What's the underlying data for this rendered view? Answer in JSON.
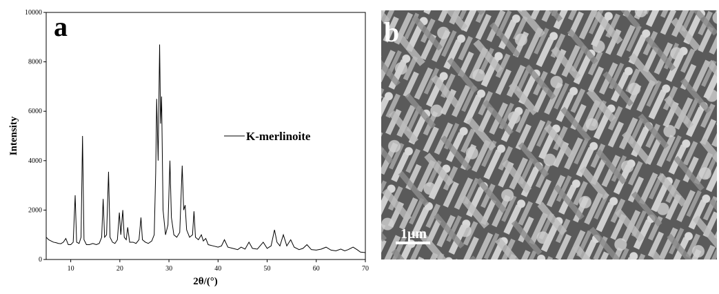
{
  "chart_data": {
    "type": "line",
    "panel_label": "a",
    "xlabel": "2θ/(°)",
    "ylabel": "Intensity",
    "xlim": [
      5,
      70
    ],
    "ylim": [
      0,
      10000
    ],
    "xticks": [
      10,
      20,
      30,
      40,
      50,
      60,
      70
    ],
    "yticks": [
      0,
      2000,
      4000,
      6000,
      8000,
      10000
    ],
    "legend": "right",
    "x": [
      5,
      5.5,
      6,
      6.5,
      7,
      7.5,
      8,
      8.5,
      9,
      9.5,
      10,
      10.5,
      10.9,
      11.2,
      11.7,
      12.1,
      12.4,
      12.7,
      13.2,
      13.8,
      14.5,
      15.2,
      15.8,
      16.3,
      16.6,
      16.9,
      17.3,
      17.7,
      18,
      18.5,
      19,
      19.5,
      19.9,
      20.2,
      20.6,
      20.9,
      21.3,
      21.6,
      22,
      22.7,
      23.3,
      23.9,
      24.3,
      24.6,
      25.2,
      25.8,
      26.5,
      27,
      27.3,
      27.5,
      27.8,
      28.1,
      28.3,
      28.5,
      28.8,
      29.3,
      29.8,
      30.2,
      30.5,
      31,
      31.6,
      32.2,
      32.7,
      33,
      33.3,
      33.6,
      34.2,
      34.8,
      35.1,
      35.4,
      36,
      36.6,
      37,
      37.5,
      38,
      39,
      40,
      40.7,
      41.3,
      42,
      43,
      44,
      44.7,
      45.5,
      46.3,
      47,
      48,
      49.2,
      50,
      50.8,
      51.5,
      52,
      52.6,
      53.3,
      54,
      54.8,
      55.5,
      56.5,
      57.3,
      58.1,
      59,
      60,
      61,
      62,
      63,
      64,
      65,
      65.8,
      66.5,
      67.5,
      68.3,
      69,
      70
    ],
    "series": [
      {
        "name": "K-merlinoite",
        "color": "#000000",
        "values": [
          900,
          800,
          750,
          700,
          680,
          650,
          640,
          700,
          850,
          600,
          600,
          700,
          2600,
          700,
          650,
          900,
          5000,
          800,
          600,
          600,
          650,
          600,
          650,
          900,
          2450,
          900,
          1000,
          3550,
          900,
          700,
          650,
          800,
          1900,
          1000,
          2000,
          900,
          800,
          1300,
          700,
          700,
          650,
          800,
          1700,
          800,
          700,
          650,
          750,
          1000,
          3500,
          6500,
          4000,
          8700,
          5500,
          6600,
          2000,
          1000,
          1400,
          4000,
          1700,
          1000,
          900,
          1100,
          3800,
          2000,
          2200,
          1200,
          900,
          1000,
          1950,
          900,
          800,
          1000,
          750,
          850,
          600,
          550,
          500,
          550,
          800,
          500,
          450,
          400,
          500,
          420,
          700,
          450,
          420,
          700,
          450,
          550,
          1200,
          700,
          550,
          1000,
          550,
          800,
          500,
          400,
          450,
          600,
          400,
          380,
          420,
          500,
          380,
          350,
          420,
          350,
          400,
          500,
          400,
          300,
          280
        ]
      }
    ]
  },
  "image": {
    "panel_label": "b",
    "scale_bar": "1μm"
  }
}
